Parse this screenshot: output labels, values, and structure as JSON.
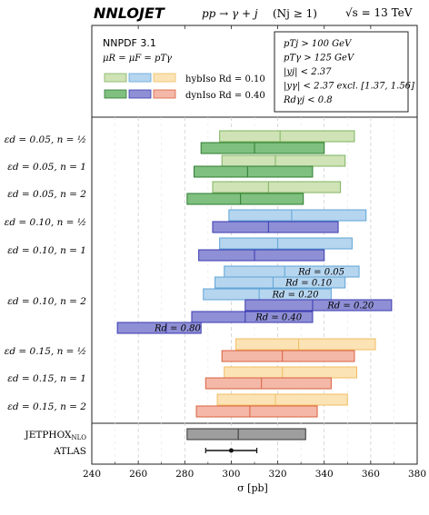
{
  "header": {
    "title": "NNLOJET",
    "process": "pp → γ + j",
    "njets": "(Nj ≥ 1)",
    "energy": "√s = 13 TeV"
  },
  "legend": {
    "pdf": "NNPDF 3.1",
    "scales": "μR = μF = pTγ",
    "hybiso": "hybIso Rd = 0.10",
    "dyniso": "dynIso Rd = 0.40",
    "colors": {
      "green_light": "#cfe3b6",
      "green_dark": "#7fbf7f",
      "blue_light": "#b6d5ef",
      "blue_dark": "#8f8fd6",
      "orange_light": "#fbe3b5",
      "orange_dark": "#f4b8a8"
    }
  },
  "cuts": [
    "pTj > 100 GeV",
    "pTγ > 125 GeV",
    "|yj| < 2.37",
    "|yγ| < 2.37 excl. [1.37, 1.56]",
    "Rdγj < 0.8"
  ],
  "chart_data": {
    "type": "bar",
    "title": "",
    "xlabel": "σ [pb]",
    "ylabel": "",
    "xlim": [
      240,
      380
    ],
    "xticks": [
      "240",
      "260",
      "280",
      "300",
      "320",
      "340",
      "360",
      "380"
    ],
    "grid": "vertical dashed",
    "row_labels": [
      "εd = 0.05, n = ½",
      "εd = 0.05, n = 1",
      "εd = 0.05, n = 2",
      "εd = 0.10, n = ½",
      "εd = 0.10, n = 1",
      "εd = 0.10, n = 2",
      "εd = 0.15, n = ½",
      "εd = 0.15, n = 1",
      "εd = 0.15, n = 2"
    ],
    "bands": [
      {
        "row": 0,
        "slot": 0,
        "iso": "hybIso",
        "color": "green",
        "lo": 295,
        "central": 321,
        "hi": 353,
        "label": ""
      },
      {
        "row": 0,
        "slot": 1,
        "iso": "dynIso",
        "color": "green",
        "lo": 287,
        "central": 310,
        "hi": 340,
        "label": ""
      },
      {
        "row": 1,
        "slot": 0,
        "iso": "hybIso",
        "color": "green",
        "lo": 296,
        "central": 319,
        "hi": 349,
        "label": ""
      },
      {
        "row": 1,
        "slot": 1,
        "iso": "dynIso",
        "color": "green",
        "lo": 284,
        "central": 307,
        "hi": 335,
        "label": ""
      },
      {
        "row": 2,
        "slot": 0,
        "iso": "hybIso",
        "color": "green",
        "lo": 292,
        "central": 316,
        "hi": 347,
        "label": ""
      },
      {
        "row": 2,
        "slot": 1,
        "iso": "dynIso",
        "color": "green",
        "lo": 281,
        "central": 304,
        "hi": 331,
        "label": ""
      },
      {
        "row": 3,
        "slot": 0,
        "iso": "hybIso",
        "color": "blue",
        "lo": 299,
        "central": 326,
        "hi": 358,
        "label": ""
      },
      {
        "row": 3,
        "slot": 1,
        "iso": "dynIso",
        "color": "blue",
        "lo": 292,
        "central": 316,
        "hi": 346,
        "label": ""
      },
      {
        "row": 4,
        "slot": 0,
        "iso": "hybIso",
        "color": "blue",
        "lo": 295,
        "central": 320,
        "hi": 352,
        "label": ""
      },
      {
        "row": 4,
        "slot": 1,
        "iso": "dynIso",
        "color": "blue",
        "lo": 286,
        "central": 310,
        "hi": 340,
        "label": ""
      },
      {
        "row": 5,
        "slot": 0,
        "iso": "hybIso",
        "color": "blue",
        "lo": 297,
        "central": 323,
        "hi": 355,
        "label": "Rd = 0.05"
      },
      {
        "row": 5,
        "slot": 1,
        "iso": "hybIso",
        "color": "blue",
        "lo": 293,
        "central": 318,
        "hi": 349,
        "label": "Rd = 0.10"
      },
      {
        "row": 5,
        "slot": 2,
        "iso": "hybIso",
        "color": "blue",
        "lo": 288,
        "central": 312,
        "hi": 343,
        "label": "Rd = 0.20"
      },
      {
        "row": 5,
        "slot": 3,
        "iso": "dynIso",
        "color": "blue",
        "lo": 306,
        "central": 335,
        "hi": 369,
        "label": "Rd = 0.20"
      },
      {
        "row": 5,
        "slot": 4,
        "iso": "dynIso",
        "color": "blue",
        "lo": 283,
        "central": 306,
        "hi": 335,
        "label": "Rd = 0.40"
      },
      {
        "row": 5,
        "slot": 5,
        "iso": "dynIso",
        "color": "blue",
        "lo": 251,
        "central": 272,
        "hi": 287,
        "label": "Rd = 0.80"
      },
      {
        "row": 6,
        "slot": 0,
        "iso": "hybIso",
        "color": "orange",
        "lo": 302,
        "central": 329,
        "hi": 362,
        "label": ""
      },
      {
        "row": 6,
        "slot": 1,
        "iso": "dynIso",
        "color": "orange",
        "lo": 296,
        "central": 322,
        "hi": 353,
        "label": ""
      },
      {
        "row": 7,
        "slot": 0,
        "iso": "hybIso",
        "color": "orange",
        "lo": 297,
        "central": 322,
        "hi": 354,
        "label": ""
      },
      {
        "row": 7,
        "slot": 1,
        "iso": "dynIso",
        "color": "orange",
        "lo": 289,
        "central": 313,
        "hi": 343,
        "label": ""
      },
      {
        "row": 8,
        "slot": 0,
        "iso": "hybIso",
        "color": "orange",
        "lo": 294,
        "central": 319,
        "hi": 350,
        "label": ""
      },
      {
        "row": 8,
        "slot": 1,
        "iso": "dynIso",
        "color": "orange",
        "lo": 285,
        "central": 308,
        "hi": 337,
        "label": ""
      }
    ],
    "jetphox": {
      "label": "JETPHOX",
      "sub": "NLO",
      "lo": 281,
      "central": 303,
      "hi": 332,
      "color": "#9e9e9e"
    },
    "atlas": {
      "label": "ATLAS",
      "central": 300,
      "lo": 289,
      "hi": 311
    }
  }
}
